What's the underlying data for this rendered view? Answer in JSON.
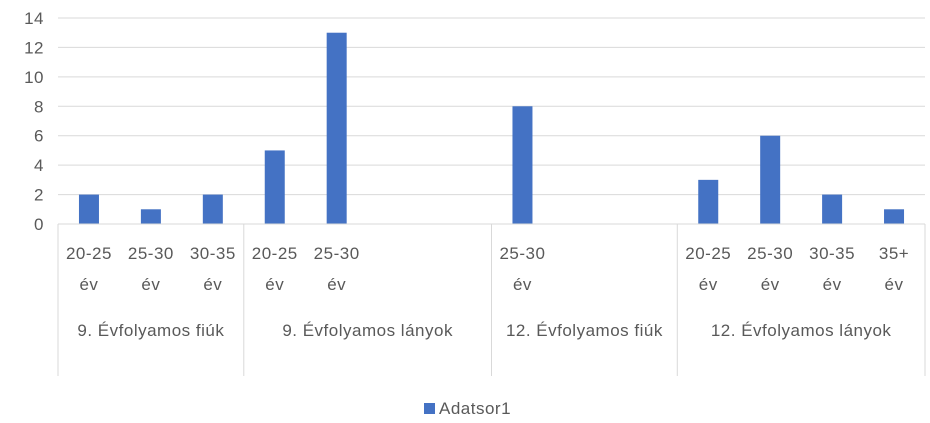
{
  "chart_data": {
    "type": "bar",
    "groups": [
      {
        "label": "9. Évfolyamos fiúk",
        "categories": [
          "20-25 év",
          "25-30 év",
          "30-35 év"
        ]
      },
      {
        "label": "9. Évfolyamos lányok",
        "categories": [
          "20-25 év",
          "25-30 év",
          null,
          null
        ]
      },
      {
        "label": "12. Évfolyamos fiúk",
        "categories": [
          "25-30 év",
          null,
          null
        ]
      },
      {
        "label": "12. Évfolyamos lányok",
        "categories": [
          "20-25 év",
          "25-30 év",
          "30-35 év",
          "35+ év"
        ]
      }
    ],
    "series": [
      {
        "name": "Adatsor1",
        "color": "#4472c4",
        "values": [
          2,
          1,
          2,
          5,
          13,
          null,
          null,
          8,
          null,
          null,
          3,
          6,
          2,
          1
        ]
      }
    ],
    "ylim": [
      0,
      14
    ],
    "yticks": [
      0,
      2,
      4,
      6,
      8,
      10,
      12,
      14
    ],
    "grid": true,
    "legend": "bottom"
  }
}
